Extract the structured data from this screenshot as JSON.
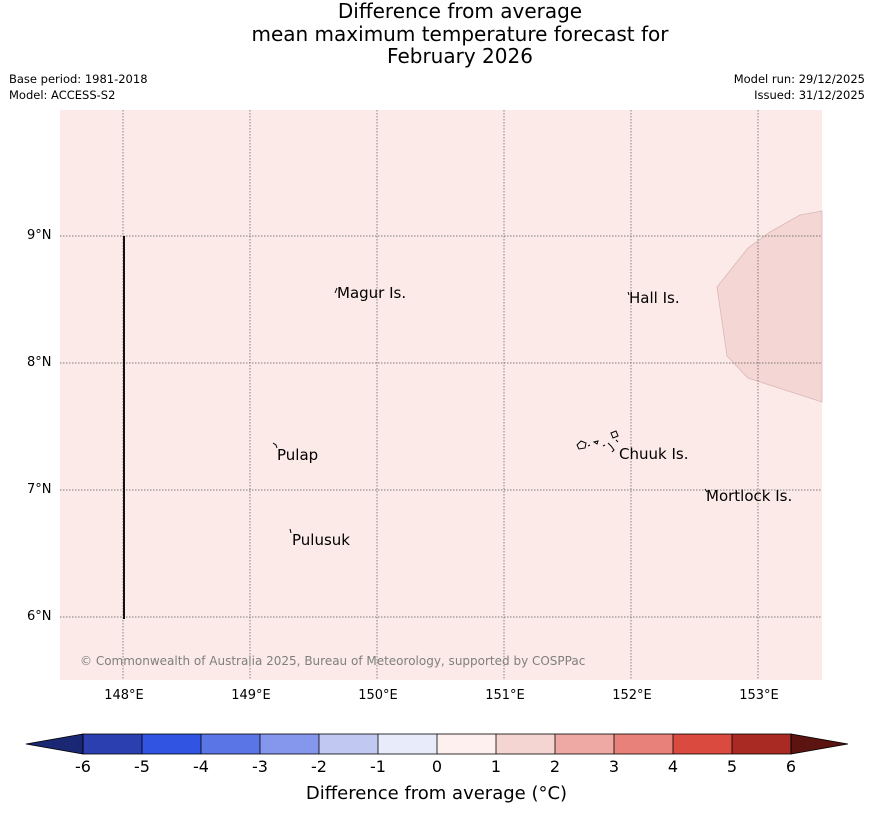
{
  "title": {
    "line1": "Difference from average",
    "line2": "mean maximum temperature forecast for",
    "line3": "February 2026"
  },
  "info": {
    "base_period": "Base period: 1981-2018",
    "model": "Model: ACCESS-S2",
    "model_run": "Model run: 29/12/2025",
    "issued": "Issued: 31/12/2025"
  },
  "map": {
    "background_color": "#fbeae8",
    "anomaly_patch_color": "#f4d6d4",
    "lat_labels": [
      "9°N",
      "8°N",
      "7°N",
      "6°N"
    ],
    "lon_labels": [
      "148°E",
      "149°E",
      "150°E",
      "151°E",
      "152°E",
      "153°E"
    ],
    "places": [
      {
        "name": "Magur Is."
      },
      {
        "name": "Hall Is."
      },
      {
        "name": "Pulap"
      },
      {
        "name": "Chuuk Is."
      },
      {
        "name": "Mortlock Is."
      },
      {
        "name": "Pulusuk"
      }
    ],
    "copyright": "© Commonwealth of Australia 2025, Bureau of Meteorology, supported by COSPPac"
  },
  "colorbar": {
    "colors": [
      "#1a2874",
      "#2b3fb0",
      "#3154e3",
      "#5a76e6",
      "#8597ec",
      "#c1c8f2",
      "#e8ebfa",
      "#fdf0ef",
      "#f5d5d2",
      "#eea9a4",
      "#e8817a",
      "#da4a3e",
      "#a92a22",
      "#5c1410"
    ],
    "tick_labels": [
      "-6",
      "-5",
      "-4",
      "-3",
      "-2",
      "-1",
      "0",
      "1",
      "2",
      "3",
      "4",
      "5",
      "6"
    ],
    "label": "Difference from average (°C)"
  }
}
